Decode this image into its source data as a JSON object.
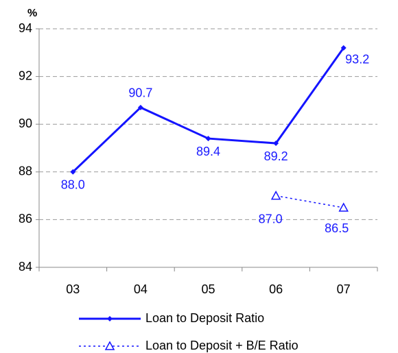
{
  "chart_data": {
    "type": "line",
    "y_label": "%",
    "categories": [
      "03",
      "04",
      "05",
      "06",
      "07"
    ],
    "series": [
      {
        "name": "Loan to Deposit Ratio",
        "color": "#1414ff",
        "values": [
          88.0,
          90.7,
          89.4,
          89.2,
          93.2
        ],
        "value_labels": [
          "88.0",
          "90.7",
          "89.4",
          "89.2",
          "93.2"
        ]
      },
      {
        "name": "Loan to Deposit + B/E Ratio",
        "color": "#1414ff",
        "values": [
          null,
          null,
          null,
          87.0,
          86.5
        ],
        "value_labels": [
          null,
          null,
          null,
          "87.0",
          "86.5"
        ]
      }
    ],
    "ylim": [
      84,
      94
    ],
    "yticks": [
      84,
      86,
      88,
      90,
      92,
      94
    ],
    "grid": true
  }
}
